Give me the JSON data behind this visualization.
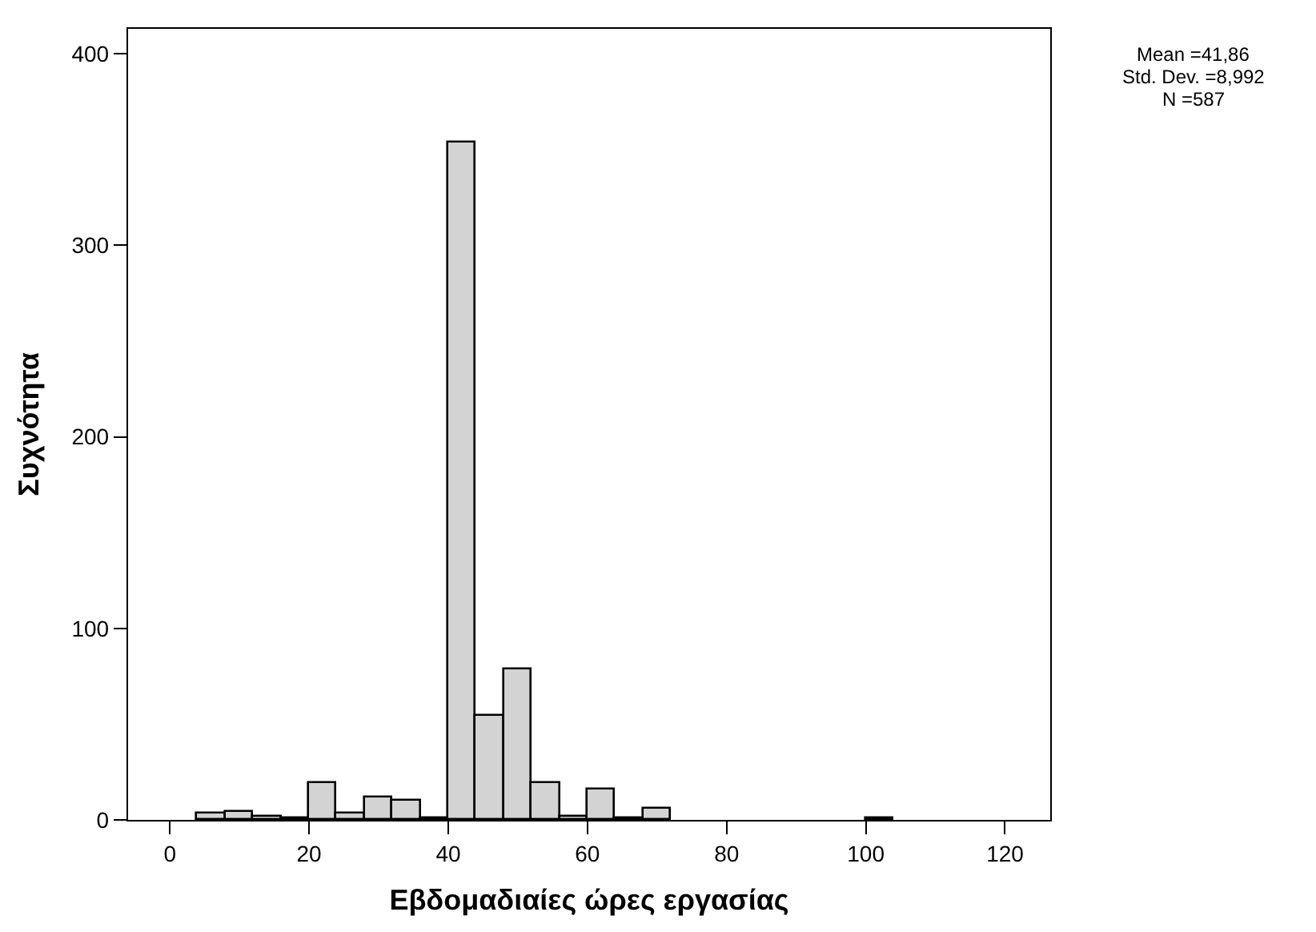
{
  "chart_data": {
    "type": "histogram",
    "xlabel": "Εβδομαδιαίες ώρες εργασίας",
    "ylabel": "Συχνότητα",
    "bins": [
      4,
      8,
      12,
      16,
      20,
      24,
      28,
      32,
      36,
      40,
      44,
      48,
      52,
      56,
      60,
      64,
      68,
      72,
      76,
      80,
      84,
      88,
      92,
      96,
      100,
      104
    ],
    "values": [
      3,
      4,
      2,
      1,
      19,
      3,
      12,
      10,
      1,
      354,
      54,
      79,
      19,
      2,
      16,
      1,
      6,
      0,
      0,
      0,
      0,
      0,
      0,
      0,
      1
    ],
    "color": "#d3d3d3",
    "xlim": [
      -6,
      126.5
    ],
    "xticks": [
      0,
      20,
      40,
      60,
      80,
      100,
      120
    ],
    "ylim": [
      0,
      413
    ],
    "yticks": [
      0,
      100,
      200,
      300,
      400
    ],
    "annotations": [
      "Mean =41,86",
      "Std. Dev. =8,992",
      "N =587"
    ]
  }
}
